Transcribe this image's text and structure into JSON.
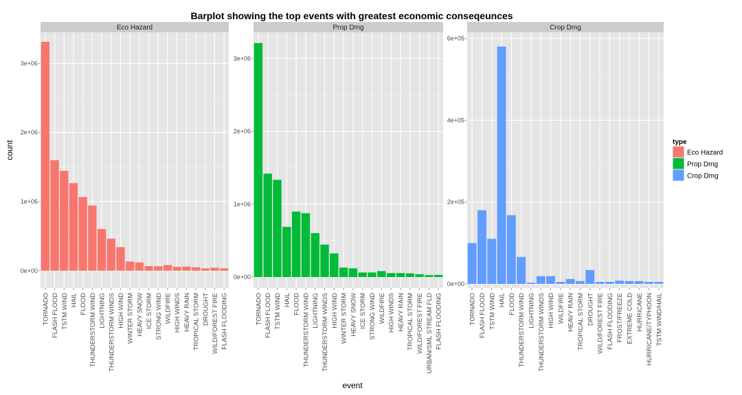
{
  "chart_data": {
    "type": "bar",
    "title": "Barplot showing the top events with greatest economic conseqeunces",
    "xlabel": "event",
    "ylabel": "count",
    "legend": {
      "title": "type",
      "placement": "right",
      "entries": [
        {
          "label": "Eco Hazard",
          "color": "#F8766D"
        },
        {
          "label": "Prop Dmg",
          "color": "#00BA38"
        },
        {
          "label": "Crop Dmg",
          "color": "#619CFF"
        }
      ]
    },
    "grid": true,
    "panels": [
      {
        "name": "Eco Hazard",
        "color": "#F8766D",
        "ylim": [
          -250000,
          3450000
        ],
        "yticks": [
          0,
          1000000,
          2000000,
          3000000
        ],
        "ytick_labels": [
          "0e+00",
          "1e+06",
          "2e+06",
          "3e+06"
        ],
        "categories": [
          "TORNADO",
          "FLASH FLOOD",
          "TSTM WIND",
          "HAIL",
          "FLOOD",
          "THUNDERSTORM WIND",
          "LIGHTNING",
          "THUNDERSTORM WINDS",
          "HIGH WIND",
          "WINTER STORM",
          "HEAVY SNOW",
          "ICE STORM",
          "STRONG WIND",
          "WILDFIRE",
          "HIGH WINDS",
          "HEAVY RAIN",
          "TROPICAL STORM",
          "DROUGHT",
          "WILD/FOREST FIRE",
          "FLASH FLOODING"
        ],
        "values": [
          3312000,
          1600000,
          1445000,
          1267000,
          1067000,
          942000,
          603000,
          464000,
          342000,
          133000,
          120000,
          67000,
          65000,
          82000,
          57000,
          60000,
          50000,
          35000,
          44000,
          35000
        ]
      },
      {
        "name": "Prop Dmg",
        "color": "#00BA38",
        "ylim": [
          -150000,
          3360000
        ],
        "yticks": [
          0,
          1000000,
          2000000,
          3000000
        ],
        "ytick_labels": [
          "0e+00",
          "1e+06",
          "2e+06",
          "3e+06"
        ],
        "categories": [
          "TORNADO",
          "FLASH FLOOD",
          "TSTM WIND",
          "HAIL",
          "FLOOD",
          "THUNDERSTORM WIND",
          "LIGHTNING",
          "THUNDERSTORM WINDS",
          "HIGH WIND",
          "WINTER STORM",
          "HEAVY SNOW",
          "ICE STORM",
          "STRONG WIND",
          "WILDFIRE",
          "HIGH WINDS",
          "HEAVY RAIN",
          "TROPICAL STORM",
          "WILD/FOREST FIRE",
          "URBAN/SML STREAM FLD",
          "FLASH FLOODING"
        ],
        "values": [
          3212000,
          1420000,
          1335000,
          689000,
          899000,
          877000,
          603000,
          446000,
          325000,
          130000,
          120000,
          63000,
          63000,
          82000,
          55000,
          55000,
          51000,
          40000,
          26000,
          30000
        ]
      },
      {
        "name": "Crop Dmg",
        "color": "#619CFF",
        "ylim": [
          -10000,
          615000
        ],
        "yticks": [
          0,
          200000,
          400000,
          600000
        ],
        "ytick_labels": [
          "0e+00",
          "2e+05",
          "4e+05",
          "6e+05"
        ],
        "categories": [
          "TORNADO",
          "FLASH FLOOD",
          "TSTM WIND",
          "HAIL",
          "FLOOD",
          "THUNDERSTORM WIND",
          "LIGHTNING",
          "THUNDERSTORM WINDS",
          "HIGH WIND",
          "WILDFIRE",
          "HEAVY RAIN",
          "TROPICAL STORM",
          "DROUGHT",
          "WILD/FOREST FIRE",
          "FLASH FLOODING",
          "FROST/FREEZE",
          "EXTREME COLD",
          "HURRICANE",
          "HURRICANE/TYPHOON",
          "TSTM WIND/HAIL"
        ],
        "values": [
          100000,
          180000,
          110000,
          580000,
          168000,
          66000,
          3000,
          19000,
          19000,
          5000,
          12000,
          7000,
          34000,
          5000,
          5000,
          8000,
          7000,
          7000,
          5000,
          5000
        ]
      }
    ]
  }
}
